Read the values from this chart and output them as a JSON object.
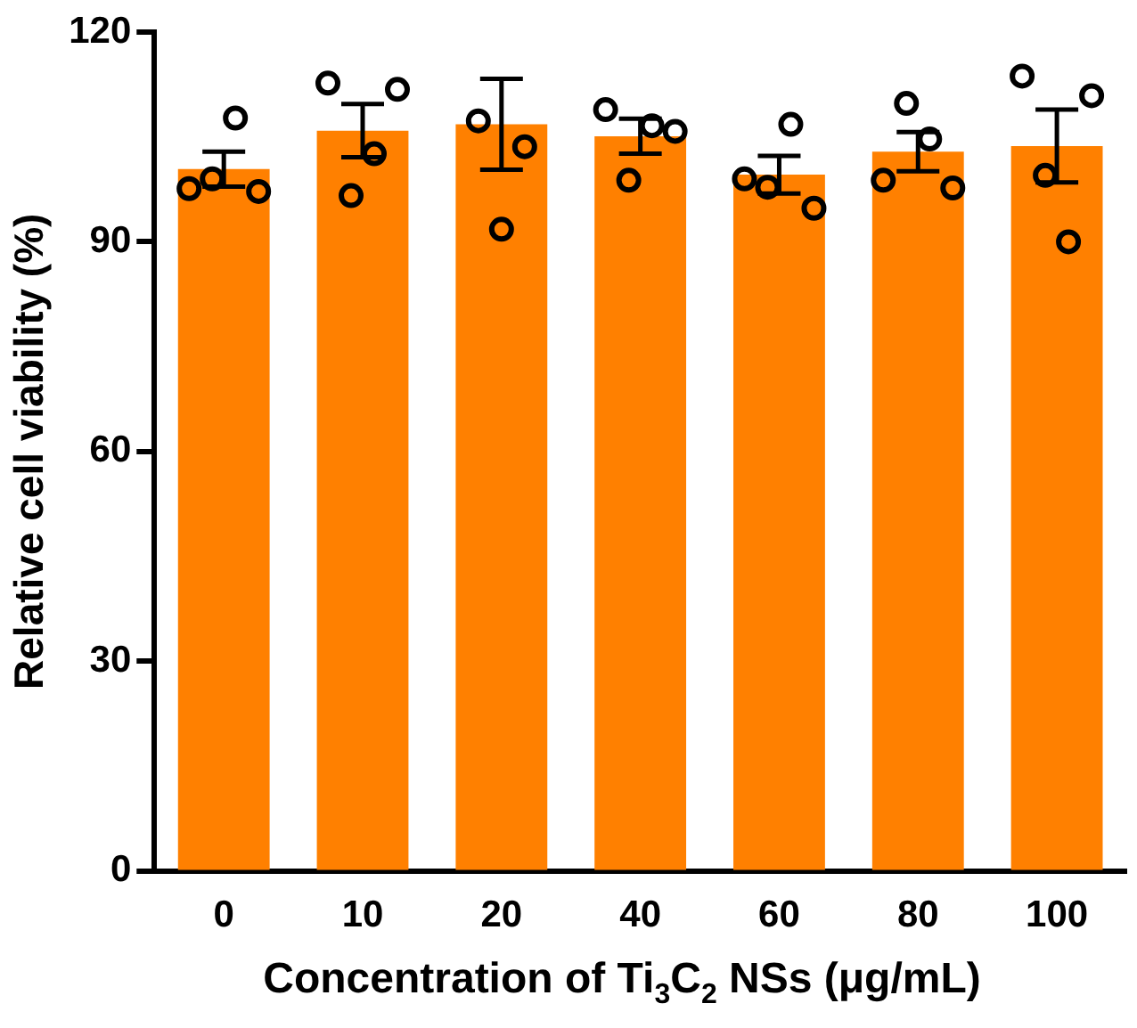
{
  "chart_data": {
    "type": "bar",
    "xlabel": "Concentration of Ti$_{3}$C$_{2}$ NSs (μg/mL)",
    "ylabel": "Relative cell viability (%)",
    "categories": [
      "0",
      "10",
      "20",
      "40",
      "60",
      "80",
      "100"
    ],
    "ylim": [
      0,
      120
    ],
    "yticks": [
      0,
      30,
      60,
      90,
      120
    ],
    "grid": false,
    "legend": false,
    "marker": "circle",
    "series": [
      {
        "color": "#ff8000",
        "values": [
          100.4,
          105.9,
          106.8,
          105.1,
          99.6,
          102.9,
          103.7
        ],
        "errors": [
          2.5,
          3.8,
          6.5,
          2.5,
          2.7,
          2.8,
          5.2
        ]
      },
      {
        "type": "scatter",
        "color": "#000000",
        "x": [
          "0",
          "0",
          "0",
          "0",
          "10",
          "10",
          "10",
          "10",
          "20",
          "20",
          "20",
          "40",
          "40",
          "40",
          "40",
          "60",
          "60",
          "60",
          "60",
          "80",
          "80",
          "80",
          "80",
          "100",
          "100",
          "100",
          "100"
        ],
        "values": [
          97.6,
          99.0,
          107.7,
          97.2,
          112.7,
          96.6,
          102.6,
          111.8,
          107.3,
          91.8,
          103.6,
          108.9,
          98.8,
          106.6,
          105.8,
          99.0,
          97.8,
          106.8,
          94.8,
          98.8,
          109.8,
          104.7,
          97.7,
          113.7,
          99.5,
          90.0,
          110.9
        ]
      }
    ]
  }
}
